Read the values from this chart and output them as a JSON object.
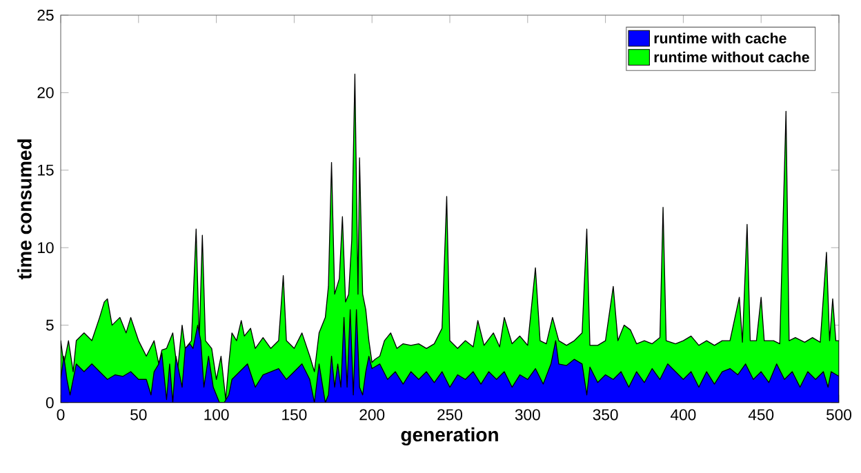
{
  "chart_data": {
    "type": "area",
    "xlabel": "generation",
    "ylabel": "time consumed",
    "xlim": [
      0,
      500
    ],
    "ylim": [
      0,
      25
    ],
    "xticks": [
      0,
      50,
      100,
      150,
      200,
      250,
      300,
      350,
      400,
      450,
      500
    ],
    "yticks": [
      0,
      5,
      10,
      15,
      20,
      25
    ],
    "legend": "top right",
    "grid": false,
    "series": [
      {
        "name": "runtime with cache",
        "color": "#0000ff",
        "x": [
          0,
          2,
          4,
          6,
          10,
          15,
          20,
          25,
          30,
          35,
          40,
          45,
          50,
          55,
          58,
          60,
          63,
          65,
          68,
          70,
          72,
          74,
          78,
          80,
          83,
          85,
          88,
          90,
          92,
          95,
          98,
          100,
          102,
          105,
          108,
          110,
          115,
          120,
          125,
          130,
          135,
          140,
          145,
          150,
          155,
          160,
          163,
          166,
          170,
          172,
          174,
          176,
          178,
          180,
          182,
          184,
          186,
          188,
          190,
          192,
          194,
          196,
          198,
          200,
          205,
          210,
          215,
          220,
          225,
          230,
          235,
          240,
          245,
          250,
          255,
          260,
          265,
          270,
          275,
          280,
          285,
          290,
          295,
          300,
          305,
          310,
          315,
          318,
          320,
          325,
          330,
          335,
          338,
          340,
          345,
          350,
          355,
          360,
          365,
          370,
          375,
          380,
          385,
          390,
          395,
          400,
          405,
          410,
          415,
          420,
          425,
          430,
          435,
          440,
          445,
          450,
          455,
          460,
          465,
          470,
          475,
          480,
          485,
          490,
          493,
          495,
          500
        ],
        "values": [
          1.5,
          3,
          1.5,
          0.5,
          2.5,
          2,
          2.5,
          2,
          1.5,
          1.8,
          1.7,
          2,
          1.5,
          1.5,
          0.5,
          2,
          2.5,
          3.2,
          0.2,
          2.5,
          0,
          3,
          1,
          3.5,
          3.8,
          3.5,
          5,
          4,
          1,
          3,
          1,
          0.5,
          0,
          0,
          0.5,
          1.5,
          2,
          2.5,
          1,
          1.8,
          2,
          2.2,
          1.5,
          2,
          2.5,
          1.5,
          0,
          2.5,
          0,
          0.5,
          3,
          1,
          2.5,
          1,
          5.5,
          1,
          6,
          0.5,
          6,
          1,
          0.5,
          2,
          3,
          2.2,
          2.5,
          1.5,
          2,
          1.2,
          2,
          1.5,
          2,
          1.3,
          2,
          1,
          1.8,
          1.5,
          2,
          1.2,
          2,
          1.5,
          2,
          1,
          1.8,
          1.5,
          2.2,
          1.2,
          2.5,
          4,
          2.5,
          2.4,
          2.8,
          2.5,
          0.5,
          2.3,
          1.3,
          1.8,
          1.5,
          2,
          1,
          2,
          1.3,
          2.2,
          1.5,
          2.5,
          2,
          1.5,
          2,
          1,
          2,
          1.2,
          2,
          2.2,
          1.8,
          2.5,
          1.5,
          2,
          1.3,
          2.5,
          1.5,
          2,
          1,
          2,
          1.5,
          2,
          1,
          2,
          1.7
        ]
      },
      {
        "name": "runtime without cache",
        "color": "#00ff00",
        "x": [
          0,
          2,
          5,
          8,
          10,
          15,
          20,
          25,
          28,
          30,
          33,
          38,
          42,
          45,
          50,
          55,
          60,
          63,
          65,
          68,
          72,
          75,
          78,
          80,
          84,
          87,
          89,
          91,
          93,
          97,
          100,
          103,
          106,
          108,
          110,
          113,
          116,
          118,
          122,
          125,
          130,
          135,
          140,
          143,
          145,
          150,
          155,
          160,
          163,
          166,
          170,
          172,
          174,
          176,
          179,
          181,
          183,
          185,
          187,
          189,
          191,
          192,
          194,
          196,
          198,
          200,
          202,
          205,
          208,
          212,
          216,
          220,
          225,
          230,
          235,
          240,
          245,
          248,
          250,
          255,
          260,
          265,
          268,
          272,
          278,
          282,
          285,
          290,
          295,
          300,
          305,
          308,
          312,
          316,
          320,
          325,
          330,
          335,
          338,
          340,
          345,
          350,
          355,
          358,
          362,
          366,
          370,
          375,
          380,
          385,
          387,
          389,
          395,
          400,
          405,
          410,
          415,
          420,
          425,
          430,
          436,
          438,
          441,
          443,
          447,
          450,
          452,
          458,
          462,
          466,
          468,
          472,
          478,
          483,
          488,
          492,
          494,
          496,
          498,
          500
        ],
        "values": [
          4,
          2.5,
          4,
          2,
          4,
          4.5,
          4,
          5.5,
          6.5,
          6.7,
          5,
          5.5,
          4.5,
          5.5,
          4,
          3,
          4,
          2.5,
          3.4,
          3.5,
          4.5,
          2,
          5,
          3.5,
          4,
          11.2,
          4,
          10.8,
          4,
          3.5,
          1.5,
          3,
          0.2,
          2.5,
          4.5,
          4,
          5.3,
          4.3,
          4.8,
          3.5,
          4.2,
          3.5,
          4,
          8.2,
          4,
          3.5,
          4.5,
          3,
          2,
          4.5,
          5.5,
          7.5,
          15.5,
          7,
          8,
          12,
          6.5,
          7,
          10.5,
          21.2,
          7,
          15.8,
          7,
          6,
          4,
          2.6,
          2.8,
          3,
          4,
          4.5,
          3.5,
          3.8,
          3.7,
          3.8,
          3.5,
          3.8,
          4.8,
          13.3,
          4,
          3.5,
          4,
          3.6,
          5.3,
          3.7,
          4.5,
          3.6,
          5.5,
          3.8,
          4.3,
          3.7,
          8.7,
          4,
          3.8,
          5.5,
          4,
          3.7,
          4,
          4.5,
          11.2,
          3.7,
          3.7,
          4,
          7.5,
          4,
          5,
          4.7,
          3.8,
          4,
          3.8,
          4.2,
          12.6,
          4,
          3.8,
          4,
          4.3,
          3.7,
          4,
          3.7,
          4,
          4,
          6.8,
          3.9,
          11.5,
          4,
          4,
          6.8,
          4,
          4,
          3.8,
          18.8,
          4,
          4.2,
          3.9,
          4.2,
          3.9,
          9.7,
          4,
          6.7,
          4,
          4
        ]
      }
    ]
  }
}
